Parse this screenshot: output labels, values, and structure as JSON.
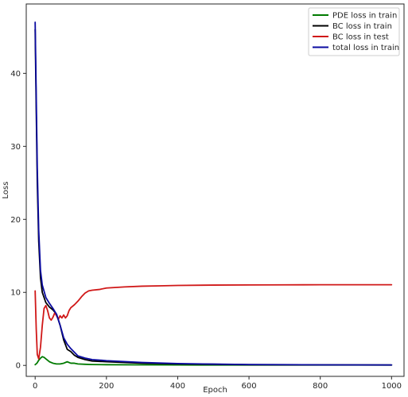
{
  "chart_data": {
    "type": "line",
    "title": "",
    "xlabel": "Epoch",
    "ylabel": "Loss",
    "xlim": [
      -25,
      1035
    ],
    "ylim": [
      -1.5,
      49.5
    ],
    "xticks": [
      0,
      200,
      400,
      600,
      800,
      1000
    ],
    "yticks": [
      0,
      10,
      20,
      30,
      40
    ],
    "grid": false,
    "legend_position": "top-right",
    "series": [
      {
        "name": "PDE loss in train",
        "color": "#007a00",
        "x": [
          0,
          5,
          10,
          15,
          20,
          25,
          30,
          40,
          50,
          60,
          70,
          80,
          90,
          100,
          110,
          120,
          140,
          160,
          200,
          300,
          400,
          600,
          800,
          1000
        ],
        "y": [
          0.1,
          0.3,
          0.7,
          1.0,
          1.2,
          1.1,
          0.9,
          0.5,
          0.3,
          0.2,
          0.2,
          0.3,
          0.5,
          0.3,
          0.3,
          0.2,
          0.15,
          0.12,
          0.1,
          0.08,
          0.06,
          0.05,
          0.05,
          0.05
        ]
      },
      {
        "name": "BC loss in train",
        "color": "#000000",
        "x": [
          0,
          3,
          6,
          10,
          15,
          20,
          30,
          40,
          50,
          60,
          70,
          80,
          90,
          100,
          110,
          120,
          140,
          160,
          200,
          300,
          400,
          500,
          600,
          800,
          1000
        ],
        "y": [
          46,
          35,
          25,
          17,
          12,
          10,
          8.6,
          8.0,
          7.6,
          7.0,
          5.5,
          3.5,
          2.2,
          1.9,
          1.4,
          1.1,
          0.8,
          0.6,
          0.5,
          0.3,
          0.2,
          0.15,
          0.1,
          0.08,
          0.05
        ]
      },
      {
        "name": "BC loss in test",
        "color": "#d01818",
        "x": [
          0,
          3,
          6,
          10,
          15,
          20,
          25,
          30,
          35,
          40,
          45,
          50,
          55,
          60,
          65,
          70,
          75,
          80,
          85,
          90,
          95,
          100,
          110,
          120,
          130,
          140,
          150,
          160,
          180,
          200,
          250,
          300,
          350,
          400,
          500,
          600,
          700,
          800,
          900,
          1000
        ],
        "y": [
          10.2,
          5.0,
          1.5,
          0.9,
          2.5,
          5.5,
          7.8,
          8.2,
          7.5,
          6.5,
          6.2,
          6.6,
          7.2,
          6.8,
          6.3,
          6.8,
          6.5,
          6.9,
          6.5,
          6.8,
          7.5,
          7.9,
          8.3,
          8.8,
          9.4,
          9.9,
          10.2,
          10.3,
          10.4,
          10.6,
          10.75,
          10.85,
          10.9,
          10.95,
          11.0,
          11.02,
          11.03,
          11.05,
          11.05,
          11.05
        ]
      },
      {
        "name": "total loss in train",
        "color": "#0a0aa0",
        "x": [
          0,
          3,
          6,
          10,
          15,
          20,
          30,
          40,
          50,
          60,
          70,
          80,
          90,
          100,
          110,
          120,
          140,
          160,
          200,
          300,
          400,
          500,
          600,
          800,
          1000
        ],
        "y": [
          47,
          37,
          27,
          18.5,
          13,
          11,
          9.3,
          8.5,
          7.8,
          7.0,
          5.5,
          3.8,
          2.9,
          2.3,
          1.8,
          1.3,
          1.0,
          0.8,
          0.65,
          0.4,
          0.25,
          0.18,
          0.12,
          0.08,
          0.06
        ]
      }
    ]
  }
}
